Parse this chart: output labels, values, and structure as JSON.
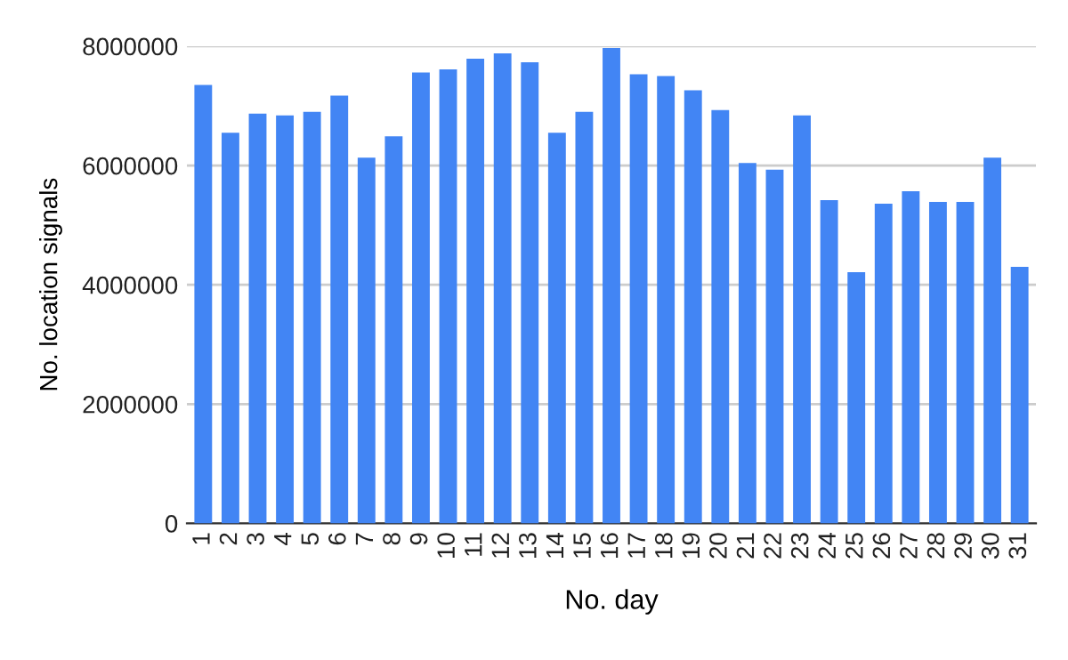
{
  "chart_data": {
    "type": "bar",
    "xlabel": "No. day",
    "ylabel": "No. location signals",
    "categories": [
      "1",
      "2",
      "3",
      "4",
      "5",
      "6",
      "7",
      "8",
      "9",
      "10",
      "11",
      "12",
      "13",
      "14",
      "15",
      "16",
      "17",
      "18",
      "19",
      "20",
      "21",
      "22",
      "23",
      "24",
      "25",
      "26",
      "27",
      "28",
      "29",
      "30",
      "31"
    ],
    "values": [
      7350000,
      6550000,
      6870000,
      6840000,
      6900000,
      7170000,
      6130000,
      6490000,
      7560000,
      7610000,
      7790000,
      7880000,
      7730000,
      6550000,
      6900000,
      7970000,
      7530000,
      7500000,
      7260000,
      6930000,
      6040000,
      5930000,
      6840000,
      5420000,
      4210000,
      5360000,
      5570000,
      5390000,
      5390000,
      6130000,
      4300000
    ],
    "color": "#4285f4",
    "ylim": [
      0,
      8000000
    ],
    "yticks": [
      0,
      2000000,
      4000000,
      6000000,
      8000000
    ],
    "grid": "y",
    "legend": false
  }
}
